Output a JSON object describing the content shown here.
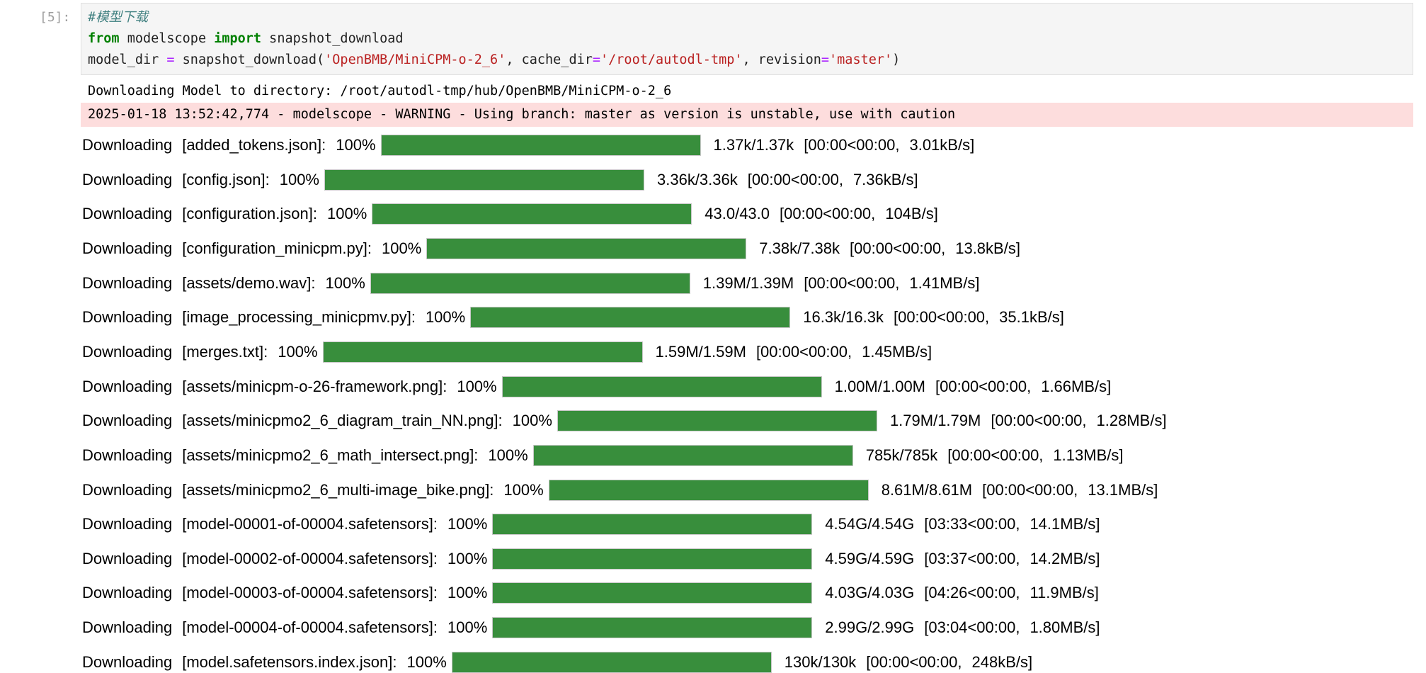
{
  "cell": {
    "prompt": "[5]:",
    "code": {
      "comment": "#模型下载",
      "line2": {
        "kw_from": "from",
        "module": " modelscope ",
        "kw_import": "import",
        "name": " snapshot_download"
      },
      "line3": {
        "var": "model_dir ",
        "eq": "=",
        "call": " snapshot_download(",
        "arg1": "'OpenBMB/MiniCPM-o-2_6'",
        "sep1": ", cache_dir",
        "eq2": "=",
        "arg2": "'/root/autodl-tmp'",
        "sep2": ", revision",
        "eq3": "=",
        "arg3": "'master'",
        "close": ")"
      }
    }
  },
  "output": {
    "stdout": "Downloading Model to directory: /root/autodl-tmp/hub/OpenBMB/MiniCPM-o-2_6",
    "stderr": "2025-01-18 13:52:42,774 - modelscope - WARNING - Using branch: master as version is unstable, use with caution"
  },
  "progress_color": "#388e3c",
  "downloads": [
    {
      "label": "Downloading",
      "file": "[added_tokens.json]:",
      "pct": "100%",
      "progress": 1.0,
      "size": "1.37k/1.37k",
      "time": "[00:00<00:00,",
      "rate": "3.01kB/s]"
    },
    {
      "label": "Downloading",
      "file": "[config.json]:",
      "pct": "100%",
      "progress": 1.0,
      "size": "3.36k/3.36k",
      "time": "[00:00<00:00,",
      "rate": "7.36kB/s]"
    },
    {
      "label": "Downloading",
      "file": "[configuration.json]:",
      "pct": "100%",
      "progress": 1.0,
      "size": "43.0/43.0",
      "time": "[00:00<00:00,",
      "rate": "104B/s]"
    },
    {
      "label": "Downloading",
      "file": "[configuration_minicpm.py]:",
      "pct": "100%",
      "progress": 1.0,
      "size": "7.38k/7.38k",
      "time": "[00:00<00:00,",
      "rate": "13.8kB/s]"
    },
    {
      "label": "Downloading",
      "file": "[assets/demo.wav]:",
      "pct": "100%",
      "progress": 1.0,
      "size": "1.39M/1.39M",
      "time": "[00:00<00:00,",
      "rate": "1.41MB/s]"
    },
    {
      "label": "Downloading",
      "file": "[image_processing_minicpmv.py]:",
      "pct": "100%",
      "progress": 1.0,
      "size": "16.3k/16.3k",
      "time": "[00:00<00:00,",
      "rate": "35.1kB/s]"
    },
    {
      "label": "Downloading",
      "file": "[merges.txt]:",
      "pct": "100%",
      "progress": 1.0,
      "size": "1.59M/1.59M",
      "time": "[00:00<00:00,",
      "rate": "1.45MB/s]"
    },
    {
      "label": "Downloading",
      "file": "[assets/minicpm-o-26-framework.png]:",
      "pct": "100%",
      "progress": 1.0,
      "size": "1.00M/1.00M",
      "time": "[00:00<00:00,",
      "rate": "1.66MB/s]"
    },
    {
      "label": "Downloading",
      "file": "[assets/minicpmo2_6_diagram_train_NN.png]:",
      "pct": "100%",
      "progress": 1.0,
      "size": "1.79M/1.79M",
      "time": "[00:00<00:00,",
      "rate": "1.28MB/s]"
    },
    {
      "label": "Downloading",
      "file": "[assets/minicpmo2_6_math_intersect.png]:",
      "pct": "100%",
      "progress": 1.0,
      "size": "785k/785k",
      "time": "[00:00<00:00,",
      "rate": "1.13MB/s]"
    },
    {
      "label": "Downloading",
      "file": "[assets/minicpmo2_6_multi-image_bike.png]:",
      "pct": "100%",
      "progress": 1.0,
      "size": "8.61M/8.61M",
      "time": "[00:00<00:00,",
      "rate": "13.1MB/s]"
    },
    {
      "label": "Downloading",
      "file": "[model-00001-of-00004.safetensors]:",
      "pct": "100%",
      "progress": 1.0,
      "size": "4.54G/4.54G",
      "time": "[03:33<00:00,",
      "rate": "14.1MB/s]"
    },
    {
      "label": "Downloading",
      "file": "[model-00002-of-00004.safetensors]:",
      "pct": "100%",
      "progress": 1.0,
      "size": "4.59G/4.59G",
      "time": "[03:37<00:00,",
      "rate": "14.2MB/s]"
    },
    {
      "label": "Downloading",
      "file": "[model-00003-of-00004.safetensors]:",
      "pct": "100%",
      "progress": 1.0,
      "size": "4.03G/4.03G",
      "time": "[04:26<00:00,",
      "rate": "11.9MB/s]"
    },
    {
      "label": "Downloading",
      "file": "[model-00004-of-00004.safetensors]:",
      "pct": "100%",
      "progress": 1.0,
      "size": "2.99G/2.99G",
      "time": "[03:04<00:00,",
      "rate": "1.80MB/s]"
    },
    {
      "label": "Downloading",
      "file": "[model.safetensors.index.json]:",
      "pct": "100%",
      "progress": 1.0,
      "size": "130k/130k",
      "time": "[00:00<00:00,",
      "rate": "248kB/s]"
    }
  ]
}
